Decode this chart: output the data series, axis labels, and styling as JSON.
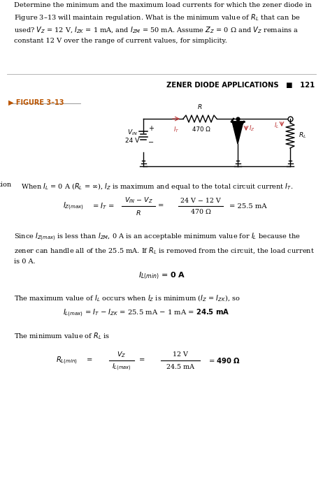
{
  "bg_color": "#ffffff",
  "section_header": "ZENER DIODE APPLICATIONS   ■   121",
  "figure_label": "▶ FIGURE 3–13",
  "sol_label": "tion"
}
